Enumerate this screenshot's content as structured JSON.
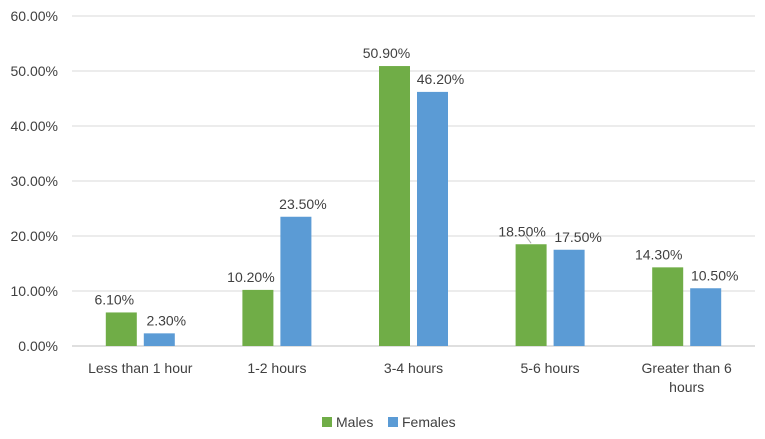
{
  "chart_data": {
    "type": "bar",
    "title": "",
    "xlabel": "",
    "ylabel": "",
    "categories": [
      "Less than 1 hour",
      "1-2 hours",
      "3-4 hours",
      "5-6 hours",
      "Greater than 6 hours"
    ],
    "category_lines": [
      [
        "Less than 1 hour"
      ],
      [
        "1-2 hours"
      ],
      [
        "3-4 hours"
      ],
      [
        "5-6 hours"
      ],
      [
        "Greater than 6",
        "hours"
      ]
    ],
    "series": [
      {
        "name": "Males",
        "values": [
          6.1,
          10.2,
          50.9,
          18.5,
          14.3
        ],
        "labels": [
          "6.10%",
          "10.20%",
          "50.90%",
          "18.50%",
          "14.30%"
        ],
        "color": "#70ad47"
      },
      {
        "name": "Females",
        "values": [
          2.3,
          23.5,
          46.2,
          17.5,
          10.5
        ],
        "labels": [
          "2.30%",
          "23.50%",
          "46.20%",
          "17.50%",
          "10.50%"
        ],
        "color": "#5b9bd5"
      }
    ],
    "ylim": [
      0,
      60
    ],
    "yticks": [
      "0.00%",
      "10.00%",
      "20.00%",
      "30.00%",
      "40.00%",
      "50.00%",
      "60.00%"
    ],
    "grid": true,
    "legend": "bottom-center"
  }
}
